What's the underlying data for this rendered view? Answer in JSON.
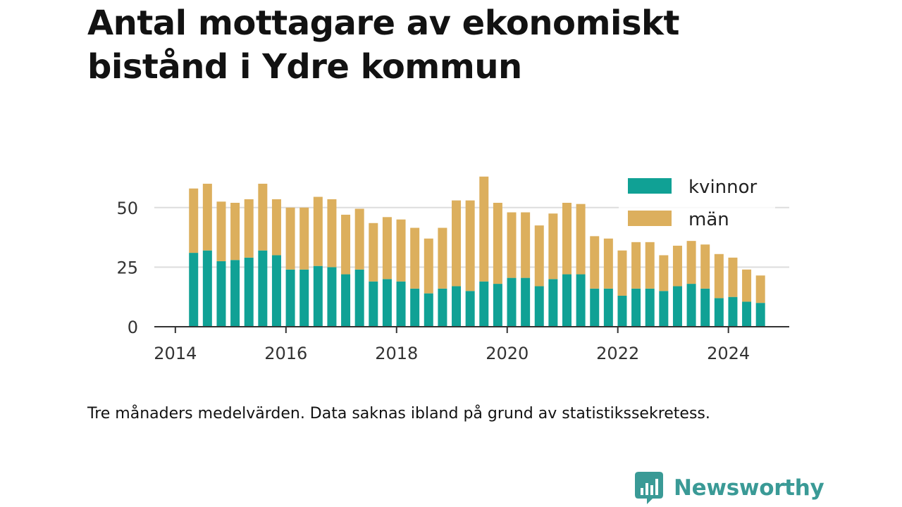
{
  "title": "Antal mottagare av ekonomiskt bistånd i Ydre kommun",
  "caption": "Tre månaders medelvärden. Data saknas ibland på grund av statistikssekretess.",
  "brand": {
    "name": "Newsworthy",
    "logo_icon": "bar-chart-speech-bubble-icon"
  },
  "colors": {
    "kvinnor": "#10a195",
    "man": "#dcaf5d",
    "axis": "#333333",
    "grid": "#dddddd",
    "brand": "#3a9a96"
  },
  "chart_data": {
    "type": "bar",
    "stacked": true,
    "ylim": [
      0,
      65
    ],
    "yticks": [
      0,
      25,
      50
    ],
    "xlim": [
      2013.62,
      2025.1
    ],
    "xticks": [
      2014,
      2016,
      2018,
      2020,
      2022,
      2024
    ],
    "grid": "horizontal",
    "legend_position": "top-right",
    "x": [
      2014.33,
      2014.58,
      2014.83,
      2015.08,
      2015.33,
      2015.58,
      2015.83,
      2016.08,
      2016.33,
      2016.58,
      2016.83,
      2017.08,
      2017.33,
      2017.58,
      2017.83,
      2018.08,
      2018.33,
      2018.58,
      2018.83,
      2019.08,
      2019.33,
      2019.58,
      2019.83,
      2020.08,
      2020.33,
      2020.58,
      2020.83,
      2021.08,
      2021.33,
      2021.58,
      2021.83,
      2022.08,
      2022.33,
      2022.58,
      2022.83,
      2023.08,
      2023.33,
      2023.58,
      2023.83,
      2024.08,
      2024.33,
      2024.58
    ],
    "series": [
      {
        "name": "kvinnor",
        "values": [
          31,
          32,
          27.5,
          28,
          29,
          32,
          30,
          24,
          24,
          25.5,
          25,
          22,
          24,
          19,
          20,
          19,
          16,
          14,
          16,
          17,
          15,
          19,
          18,
          20.5,
          20.5,
          17,
          20,
          22,
          22,
          16,
          16,
          13,
          16,
          16,
          15,
          17,
          18,
          16,
          12,
          12.5,
          10.5,
          10
        ]
      },
      {
        "name": "män",
        "values": [
          27,
          28,
          25,
          24,
          24.5,
          28,
          23.5,
          26,
          26,
          29,
          28.5,
          25,
          25.5,
          24.5,
          26,
          26,
          25.5,
          23,
          25.5,
          36,
          38,
          44,
          34,
          27.5,
          27.5,
          25.5,
          27.5,
          30,
          29.5,
          22,
          21,
          19,
          19.5,
          19.5,
          15,
          17,
          18,
          18.5,
          18.5,
          16.5,
          13.5,
          11.5
        ]
      }
    ]
  }
}
